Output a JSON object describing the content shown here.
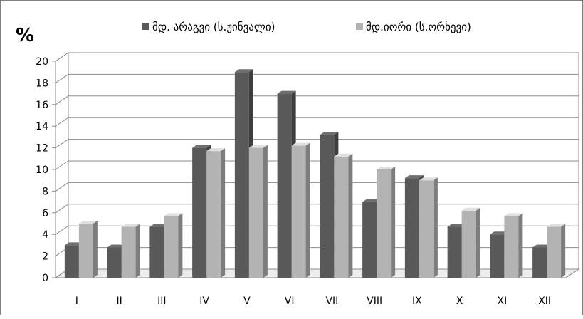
{
  "chart_data": {
    "type": "bar",
    "title": "",
    "ylabel": "%",
    "xlabel": "",
    "ylim": [
      0,
      20
    ],
    "yticks": [
      0,
      2,
      4,
      6,
      8,
      10,
      12,
      14,
      16,
      18,
      20
    ],
    "categories": [
      "I",
      "II",
      "III",
      "IV",
      "V",
      "VI",
      "VII",
      "VIII",
      "IX",
      "X",
      "XI",
      "XII"
    ],
    "series": [
      {
        "name": "მდ. არაგვი (ს.ჟინვალი)",
        "color": "#595959",
        "values": [
          3.0,
          2.8,
          4.7,
          12.0,
          19.0,
          17.0,
          13.2,
          7.0,
          9.2,
          4.7,
          4.0,
          2.8
        ]
      },
      {
        "name": "მდ.იორი (ს.ორხევი)",
        "color": "#b3b3b3",
        "values": [
          5.0,
          4.7,
          5.7,
          11.7,
          12.0,
          12.2,
          11.2,
          10.0,
          9.0,
          6.2,
          5.7,
          4.7
        ]
      }
    ],
    "grid": true,
    "legend_position": "top"
  }
}
